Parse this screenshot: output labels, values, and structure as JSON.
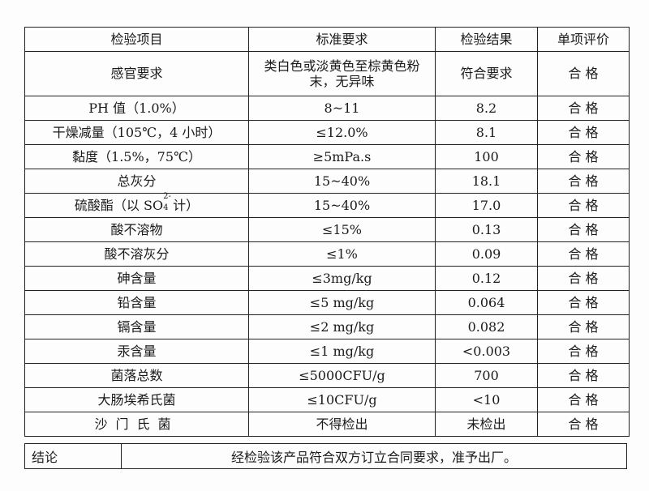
{
  "headers": [
    "检验项目",
    "标准要求",
    "检验结果",
    "单项评价"
  ],
  "rows": [
    {
      "item": "感官要求",
      "standard": "类白色或淡黄色至棕黄色粉末，无异味",
      "result": "符合要求",
      "eval": "合 格"
    },
    {
      "item": "PH 值（1.0%）",
      "standard": "8~11",
      "result": "8.2",
      "eval": "合 格"
    },
    {
      "item": "干燥减量（105℃，4 小时）",
      "standard": "≤12.0%",
      "result": "8.1",
      "eval": "合 格"
    },
    {
      "item": "黏度（1.5%，75℃）",
      "standard": "≥5mPa.s",
      "result": "100",
      "eval": "合 格"
    },
    {
      "item": "总灰分",
      "standard": "15~40%",
      "result": "18.1",
      "eval": "合 格"
    },
    {
      "item_prefix": "硫酸酯（以 SO",
      "item_sub": "4",
      "item_sup": "2-",
      "item_suffix": "计）",
      "standard": "15~40%",
      "result": "17.0",
      "eval": "合 格"
    },
    {
      "item": "酸不溶物",
      "standard": "≤15%",
      "result": "0.13",
      "eval": "合 格"
    },
    {
      "item": "酸不溶灰分",
      "standard": "≤1%",
      "result": "0.09",
      "eval": "合 格"
    },
    {
      "item": "砷含量",
      "standard": "≤3mg/kg",
      "result": "0.12",
      "eval": "合 格"
    },
    {
      "item": "铅含量",
      "standard": "≤5 mg/kg",
      "result": "0.064",
      "eval": "合 格"
    },
    {
      "item": "镉含量",
      "standard": "≤2 mg/kg",
      "result": "0.082",
      "eval": "合 格"
    },
    {
      "item": "汞含量",
      "standard": "≤1 mg/kg",
      "result": "<0.003",
      "eval": "合 格"
    },
    {
      "item": "菌落总数",
      "standard": "≤5000CFU/g",
      "result": "700",
      "eval": "合 格"
    },
    {
      "item": "大肠埃希氏菌",
      "standard": "≤10CFU/g",
      "result": "<10",
      "eval": "合 格"
    },
    {
      "item": "沙门氏菌",
      "standard": "不得检出",
      "result": "未检出",
      "eval": "合 格"
    }
  ],
  "conclusion": {
    "label": "结论",
    "text": "经检验该产品符合双方订立合同要求，准予出厂。"
  }
}
